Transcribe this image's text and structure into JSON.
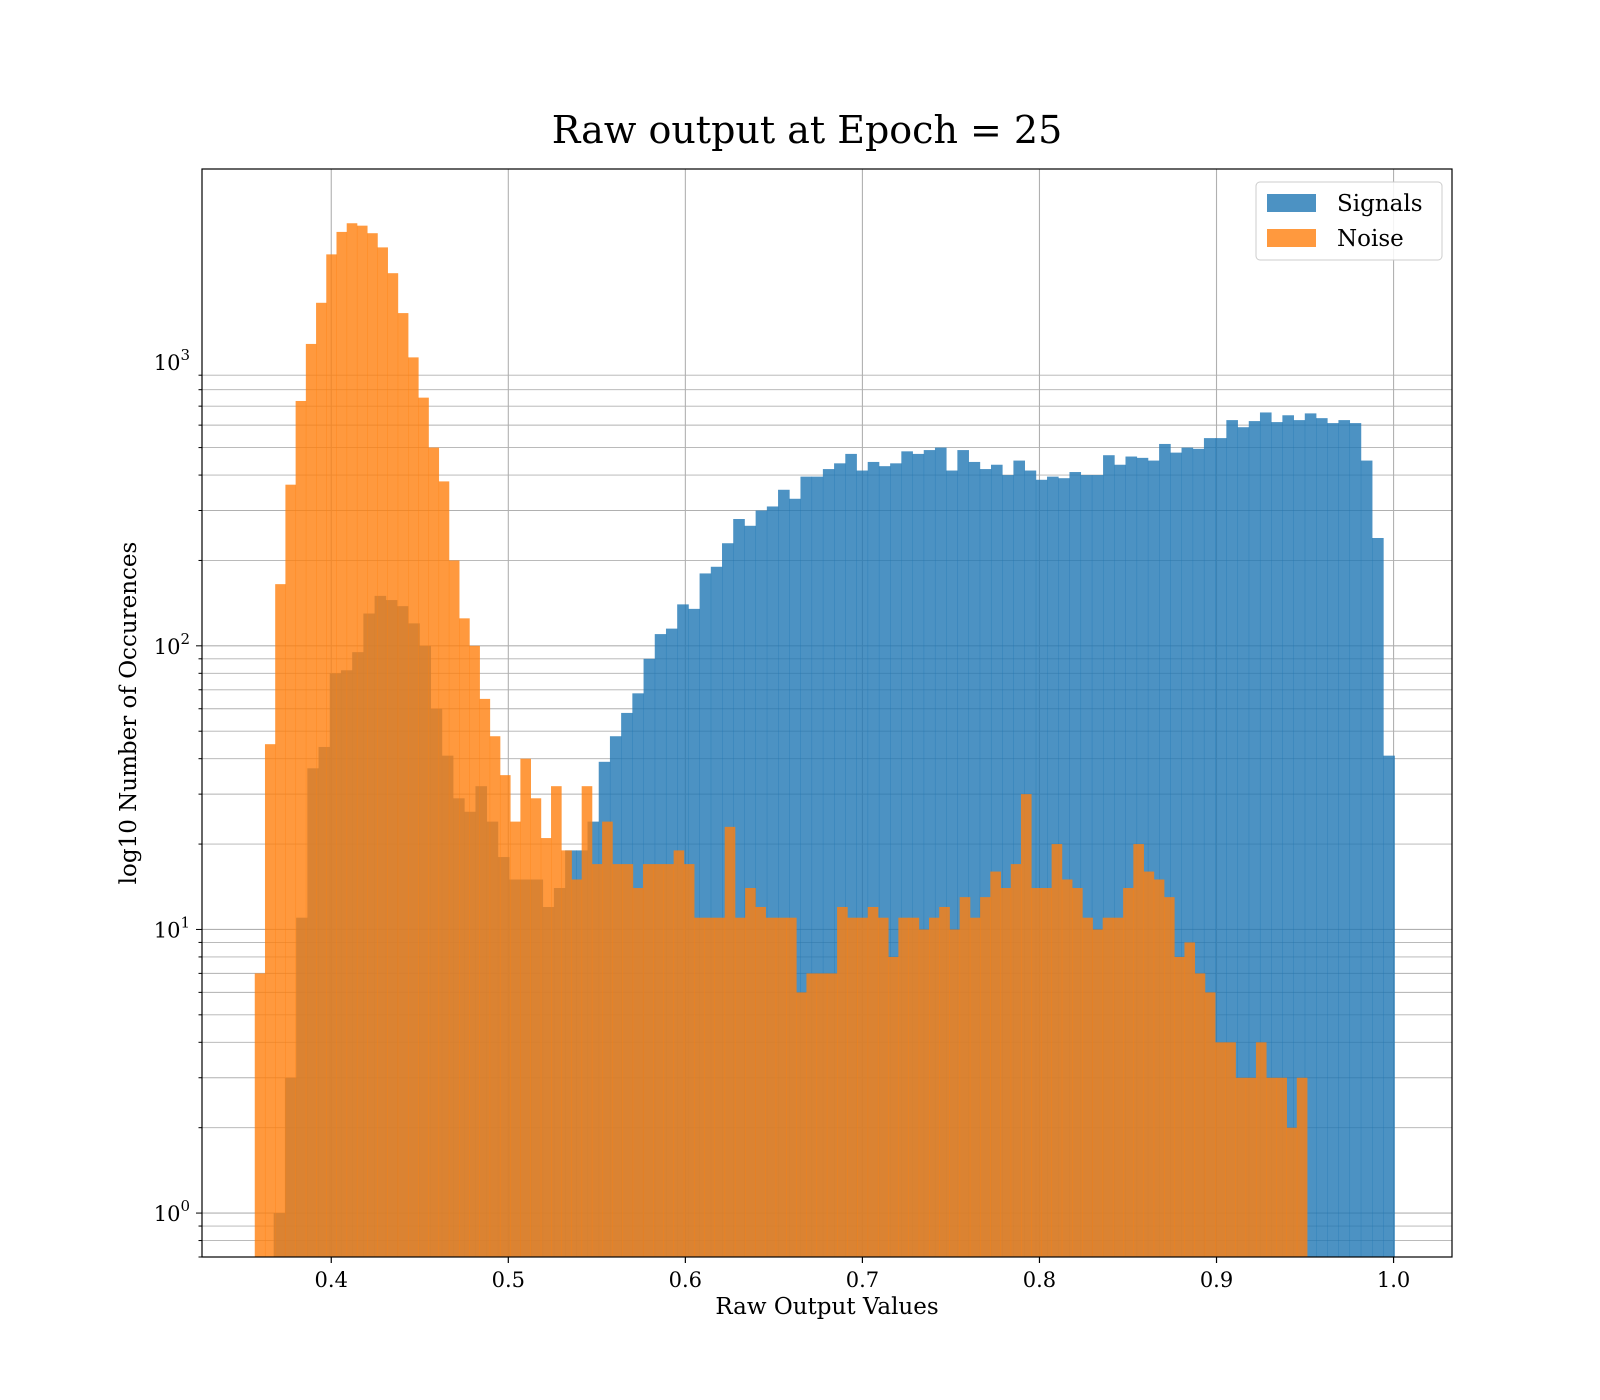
{
  "chart_data": {
    "type": "bar",
    "title": "Raw output at Epoch = 25",
    "xlabel": "Raw Output Values",
    "ylabel": "log10 Number of Occurences",
    "xlim": [
      0.327,
      1.033
    ],
    "ylim": [
      0.7,
      4800
    ],
    "yscale": "log",
    "grid": true,
    "legend_position": "top-right",
    "x_ticks": [
      0.4,
      0.5,
      0.6,
      0.7,
      0.8,
      0.9,
      1.0
    ],
    "x_tick_labels": [
      "0.4",
      "0.5",
      "0.6",
      "0.7",
      "0.8",
      "0.9",
      "1.0"
    ],
    "y_ticks": [
      1,
      10,
      100,
      1000
    ],
    "y_tick_labels": [
      {
        "base": "10",
        "exp": "0"
      },
      {
        "base": "10",
        "exp": "1"
      },
      {
        "base": "10",
        "exp": "2"
      },
      {
        "base": "10",
        "exp": "3"
      }
    ],
    "series": [
      {
        "name": "Signals",
        "color": "#1f77b4",
        "alpha": 0.8,
        "bin_start": 0.3675,
        "bin_width": 0.00633,
        "values": [
          1,
          3,
          11,
          37,
          44,
          80,
          82,
          95,
          130,
          150,
          145,
          138,
          120,
          100,
          60,
          41,
          29,
          26,
          32,
          24,
          18,
          15,
          15,
          15,
          12,
          14,
          19,
          19,
          24,
          39,
          48,
          58,
          68,
          90,
          110,
          115,
          140,
          135,
          180,
          190,
          230,
          280,
          265,
          300,
          310,
          355,
          330,
          395,
          395,
          420,
          440,
          475,
          415,
          445,
          430,
          440,
          485,
          475,
          490,
          500,
          415,
          490,
          445,
          420,
          435,
          400,
          450,
          415,
          385,
          395,
          390,
          410,
          400,
          400,
          470,
          435,
          465,
          460,
          450,
          515,
          480,
          500,
          495,
          540,
          540,
          625,
          590,
          620,
          665,
          615,
          650,
          625,
          660,
          635,
          610,
          625,
          610,
          450,
          240,
          41
        ]
      },
      {
        "name": "Noise",
        "color": "#ff7f0e",
        "alpha": 0.8,
        "bin_start": 0.3568,
        "bin_width": 0.00577,
        "values": [
          7,
          45,
          165,
          370,
          730,
          1160,
          1620,
          2400,
          2880,
          3090,
          3030,
          2850,
          2540,
          2060,
          1490,
          1040,
          750,
          500,
          380,
          200,
          125,
          100,
          65,
          48,
          35,
          24,
          40,
          29,
          21,
          32,
          19,
          15,
          32,
          17,
          24,
          17,
          17,
          14,
          17,
          17,
          17,
          19,
          17,
          11,
          11,
          11,
          23,
          11,
          14,
          12,
          11,
          11,
          11,
          6,
          7,
          7,
          7,
          12,
          11,
          11,
          12,
          11,
          8,
          11,
          11,
          10,
          11,
          12,
          10,
          13,
          11,
          13,
          16,
          14,
          17,
          30,
          14,
          14,
          20,
          15,
          14,
          11,
          10,
          11,
          11,
          14,
          20,
          16,
          15,
          13,
          8,
          9,
          7,
          6,
          4,
          4,
          3,
          3,
          4,
          3,
          3,
          2,
          3
        ]
      }
    ]
  }
}
